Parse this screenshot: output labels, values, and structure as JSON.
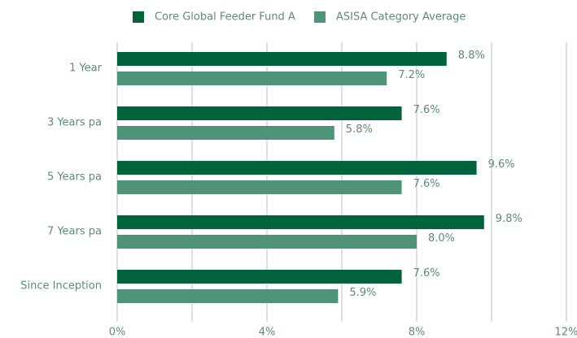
{
  "chart_data": {
    "type": "hbar",
    "categories": [
      "1 Year",
      "3 Years pa",
      "5 Years pa",
      "7 Years pa",
      "Since Inception"
    ],
    "series": [
      {
        "name": "Core Global Feeder Fund A",
        "color": "#00633b",
        "values": [
          8.8,
          7.6,
          9.6,
          9.8,
          7.6
        ],
        "value_labels": [
          "8.8%",
          "7.6%",
          "9.6%",
          "9.8%",
          "7.6%"
        ]
      },
      {
        "name": "ASISA Category Average",
        "color": "#4f9479",
        "values": [
          7.2,
          5.8,
          7.6,
          8.0,
          5.9
        ],
        "value_labels": [
          "7.2%",
          "5.8%",
          "7.6%",
          "8.0%",
          "5.9%"
        ]
      }
    ],
    "xlim": [
      0,
      12
    ],
    "xticks": [
      {
        "value": 0,
        "label": "0%"
      },
      {
        "value": 4,
        "label": "4%"
      },
      {
        "value": 8,
        "label": "8%"
      },
      {
        "value": 12,
        "label": "12%"
      }
    ],
    "grid_ticks": [
      0,
      2,
      4,
      6,
      8,
      10,
      12
    ],
    "grid": true,
    "legend": "top"
  }
}
